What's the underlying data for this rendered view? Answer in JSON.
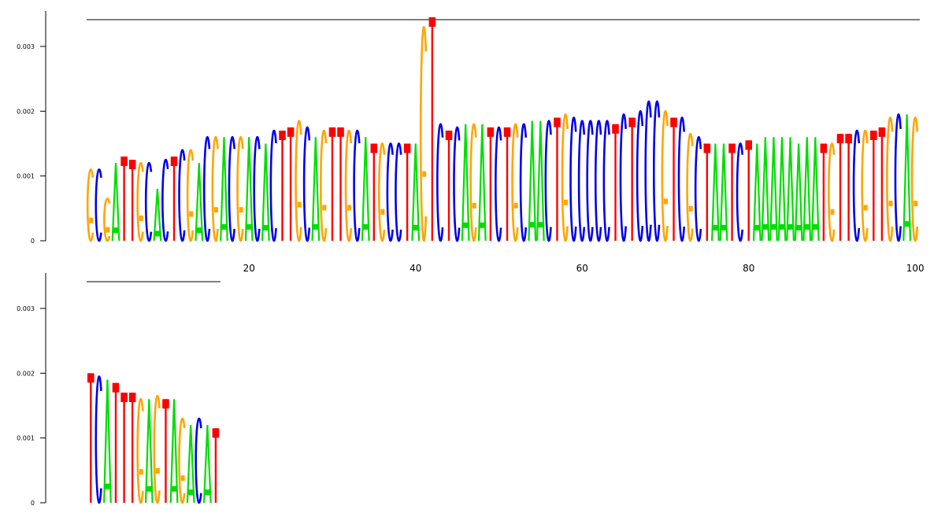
{
  "chart_data": {
    "type": "sequence-logo",
    "grid": false,
    "colors": {
      "A": "#00dd00",
      "C": "#0000ee",
      "G": "#ffa500",
      "T": "#ff0000"
    },
    "panels": [
      {
        "position_start": 1,
        "position_end": 101,
        "ylim": [
          0,
          0.0034
        ],
        "y_ticks": [
          {
            "value": 0,
            "label": "0"
          },
          {
            "value": 0.001,
            "label": "0.001"
          },
          {
            "value": 0.002,
            "label": "0.002"
          },
          {
            "value": 0.003,
            "label": "0.003"
          }
        ],
        "x_ticks": [
          {
            "value": 20,
            "label": "20"
          },
          {
            "value": 40,
            "label": "40"
          },
          {
            "value": 60,
            "label": "60"
          },
          {
            "value": 80,
            "label": "80"
          },
          {
            "value": 100,
            "label": "100"
          }
        ],
        "columns": [
          {
            "pos": 1,
            "letter": "G",
            "height": 0.0011
          },
          {
            "pos": 2,
            "letter": "C",
            "height": 0.0011
          },
          {
            "pos": 3,
            "letter": "G",
            "height": 0.00065
          },
          {
            "pos": 4,
            "letter": "A",
            "height": 0.0012
          },
          {
            "pos": 5,
            "letter": "T",
            "height": 0.0013
          },
          {
            "pos": 6,
            "letter": "T",
            "height": 0.00125
          },
          {
            "pos": 7,
            "letter": "G",
            "height": 0.0012
          },
          {
            "pos": 8,
            "letter": "C",
            "height": 0.0012
          },
          {
            "pos": 9,
            "letter": "A",
            "height": 0.0008
          },
          {
            "pos": 10,
            "letter": "C",
            "height": 0.00125
          },
          {
            "pos": 11,
            "letter": "T",
            "height": 0.0013
          },
          {
            "pos": 12,
            "letter": "C",
            "height": 0.0014
          },
          {
            "pos": 13,
            "letter": "G",
            "height": 0.0014
          },
          {
            "pos": 14,
            "letter": "A",
            "height": 0.0012
          },
          {
            "pos": 15,
            "letter": "C",
            "height": 0.0016
          },
          {
            "pos": 16,
            "letter": "G",
            "height": 0.0016
          },
          {
            "pos": 17,
            "letter": "A",
            "height": 0.0016
          },
          {
            "pos": 18,
            "letter": "C",
            "height": 0.0016
          },
          {
            "pos": 19,
            "letter": "G",
            "height": 0.0016
          },
          {
            "pos": 20,
            "letter": "A",
            "height": 0.0016
          },
          {
            "pos": 21,
            "letter": "C",
            "height": 0.0016
          },
          {
            "pos": 22,
            "letter": "A",
            "height": 0.0015
          },
          {
            "pos": 23,
            "letter": "C",
            "height": 0.0017
          },
          {
            "pos": 24,
            "letter": "T",
            "height": 0.0017
          },
          {
            "pos": 25,
            "letter": "T",
            "height": 0.00175
          },
          {
            "pos": 26,
            "letter": "G",
            "height": 0.00185
          },
          {
            "pos": 27,
            "letter": "C",
            "height": 0.00175
          },
          {
            "pos": 28,
            "letter": "A",
            "height": 0.0016
          },
          {
            "pos": 29,
            "letter": "G",
            "height": 0.0017
          },
          {
            "pos": 30,
            "letter": "T",
            "height": 0.00175
          },
          {
            "pos": 31,
            "letter": "T",
            "height": 0.00175
          },
          {
            "pos": 32,
            "letter": "G",
            "height": 0.0017
          },
          {
            "pos": 33,
            "letter": "C",
            "height": 0.0017
          },
          {
            "pos": 34,
            "letter": "A",
            "height": 0.0016
          },
          {
            "pos": 35,
            "letter": "T",
            "height": 0.0015
          },
          {
            "pos": 36,
            "letter": "G",
            "height": 0.0015
          },
          {
            "pos": 37,
            "letter": "C",
            "height": 0.0015
          },
          {
            "pos": 38,
            "letter": "C",
            "height": 0.0015
          },
          {
            "pos": 39,
            "letter": "T",
            "height": 0.0015
          },
          {
            "pos": 40,
            "letter": "A",
            "height": 0.0015
          },
          {
            "pos": 41,
            "letter": "G",
            "height": 0.0033
          },
          {
            "pos": 42,
            "letter": "T",
            "height": 0.00345
          },
          {
            "pos": 43,
            "letter": "C",
            "height": 0.0018
          },
          {
            "pos": 44,
            "letter": "T",
            "height": 0.0017
          },
          {
            "pos": 45,
            "letter": "C",
            "height": 0.00175
          },
          {
            "pos": 46,
            "letter": "A",
            "height": 0.0018
          },
          {
            "pos": 47,
            "letter": "G",
            "height": 0.0018
          },
          {
            "pos": 48,
            "letter": "A",
            "height": 0.0018
          },
          {
            "pos": 49,
            "letter": "T",
            "height": 0.00175
          },
          {
            "pos": 50,
            "letter": "C",
            "height": 0.00175
          },
          {
            "pos": 51,
            "letter": "T",
            "height": 0.00175
          },
          {
            "pos": 52,
            "letter": "G",
            "height": 0.0018
          },
          {
            "pos": 53,
            "letter": "C",
            "height": 0.0018
          },
          {
            "pos": 54,
            "letter": "A",
            "height": 0.00185
          },
          {
            "pos": 55,
            "letter": "A",
            "height": 0.00185
          },
          {
            "pos": 56,
            "letter": "C",
            "height": 0.00185
          },
          {
            "pos": 57,
            "letter": "T",
            "height": 0.0019
          },
          {
            "pos": 58,
            "letter": "G",
            "height": 0.00195
          },
          {
            "pos": 59,
            "letter": "C",
            "height": 0.0019
          },
          {
            "pos": 60,
            "letter": "C",
            "height": 0.00185
          },
          {
            "pos": 61,
            "letter": "C",
            "height": 0.00185
          },
          {
            "pos": 62,
            "letter": "C",
            "height": 0.00185
          },
          {
            "pos": 63,
            "letter": "C",
            "height": 0.00185
          },
          {
            "pos": 64,
            "letter": "T",
            "height": 0.0018
          },
          {
            "pos": 65,
            "letter": "C",
            "height": 0.00195
          },
          {
            "pos": 66,
            "letter": "T",
            "height": 0.0019
          },
          {
            "pos": 67,
            "letter": "C",
            "height": 0.002
          },
          {
            "pos": 68,
            "letter": "C",
            "height": 0.00215
          },
          {
            "pos": 69,
            "letter": "C",
            "height": 0.00215
          },
          {
            "pos": 70,
            "letter": "G",
            "height": 0.002
          },
          {
            "pos": 71,
            "letter": "T",
            "height": 0.0019
          },
          {
            "pos": 72,
            "letter": "C",
            "height": 0.0019
          },
          {
            "pos": 73,
            "letter": "G",
            "height": 0.00165
          },
          {
            "pos": 74,
            "letter": "C",
            "height": 0.0016
          },
          {
            "pos": 75,
            "letter": "T",
            "height": 0.0015
          },
          {
            "pos": 76,
            "letter": "A",
            "height": 0.0015
          },
          {
            "pos": 77,
            "letter": "A",
            "height": 0.0015
          },
          {
            "pos": 78,
            "letter": "T",
            "height": 0.0015
          },
          {
            "pos": 79,
            "letter": "C",
            "height": 0.0015
          },
          {
            "pos": 80,
            "letter": "T",
            "height": 0.00155
          },
          {
            "pos": 81,
            "letter": "A",
            "height": 0.0015
          },
          {
            "pos": 82,
            "letter": "A",
            "height": 0.0016
          },
          {
            "pos": 83,
            "letter": "A",
            "height": 0.0016
          },
          {
            "pos": 84,
            "letter": "A",
            "height": 0.0016
          },
          {
            "pos": 85,
            "letter": "A",
            "height": 0.0016
          },
          {
            "pos": 86,
            "letter": "A",
            "height": 0.0015
          },
          {
            "pos": 87,
            "letter": "A",
            "height": 0.0016
          },
          {
            "pos": 88,
            "letter": "A",
            "height": 0.0016
          },
          {
            "pos": 89,
            "letter": "T",
            "height": 0.0015
          },
          {
            "pos": 90,
            "letter": "G",
            "height": 0.0015
          },
          {
            "pos": 91,
            "letter": "T",
            "height": 0.00165
          },
          {
            "pos": 92,
            "letter": "T",
            "height": 0.00165
          },
          {
            "pos": 93,
            "letter": "C",
            "height": 0.0017
          },
          {
            "pos": 94,
            "letter": "G",
            "height": 0.0017
          },
          {
            "pos": 95,
            "letter": "T",
            "height": 0.0017
          },
          {
            "pos": 96,
            "letter": "T",
            "height": 0.00175
          },
          {
            "pos": 97,
            "letter": "G",
            "height": 0.0019
          },
          {
            "pos": 98,
            "letter": "C",
            "height": 0.00195
          },
          {
            "pos": 99,
            "letter": "A",
            "height": 0.00195
          },
          {
            "pos": 100,
            "letter": "G",
            "height": 0.0019
          }
        ]
      },
      {
        "position_start": 101,
        "position_end": 117,
        "ylim": [
          0,
          0.0034
        ],
        "y_ticks": [
          {
            "value": 0,
            "label": "0"
          },
          {
            "value": 0.001,
            "label": "0.001"
          },
          {
            "value": 0.002,
            "label": "0.002"
          },
          {
            "value": 0.003,
            "label": "0.003"
          }
        ],
        "x_ticks": [],
        "columns": [
          {
            "pos": 101,
            "letter": "T",
            "height": 0.002
          },
          {
            "pos": 102,
            "letter": "C",
            "height": 0.00195
          },
          {
            "pos": 103,
            "letter": "A",
            "height": 0.0019
          },
          {
            "pos": 104,
            "letter": "T",
            "height": 0.00185
          },
          {
            "pos": 105,
            "letter": "T",
            "height": 0.0017
          },
          {
            "pos": 106,
            "letter": "T",
            "height": 0.0017
          },
          {
            "pos": 107,
            "letter": "G",
            "height": 0.0016
          },
          {
            "pos": 108,
            "letter": "A",
            "height": 0.0016
          },
          {
            "pos": 109,
            "letter": "G",
            "height": 0.00165
          },
          {
            "pos": 110,
            "letter": "T",
            "height": 0.0016
          },
          {
            "pos": 111,
            "letter": "A",
            "height": 0.0016
          },
          {
            "pos": 112,
            "letter": "G",
            "height": 0.0013
          },
          {
            "pos": 113,
            "letter": "A",
            "height": 0.0012
          },
          {
            "pos": 114,
            "letter": "C",
            "height": 0.0013
          },
          {
            "pos": 115,
            "letter": "A",
            "height": 0.0012
          },
          {
            "pos": 116,
            "letter": "T",
            "height": 0.00115
          }
        ]
      }
    ]
  }
}
